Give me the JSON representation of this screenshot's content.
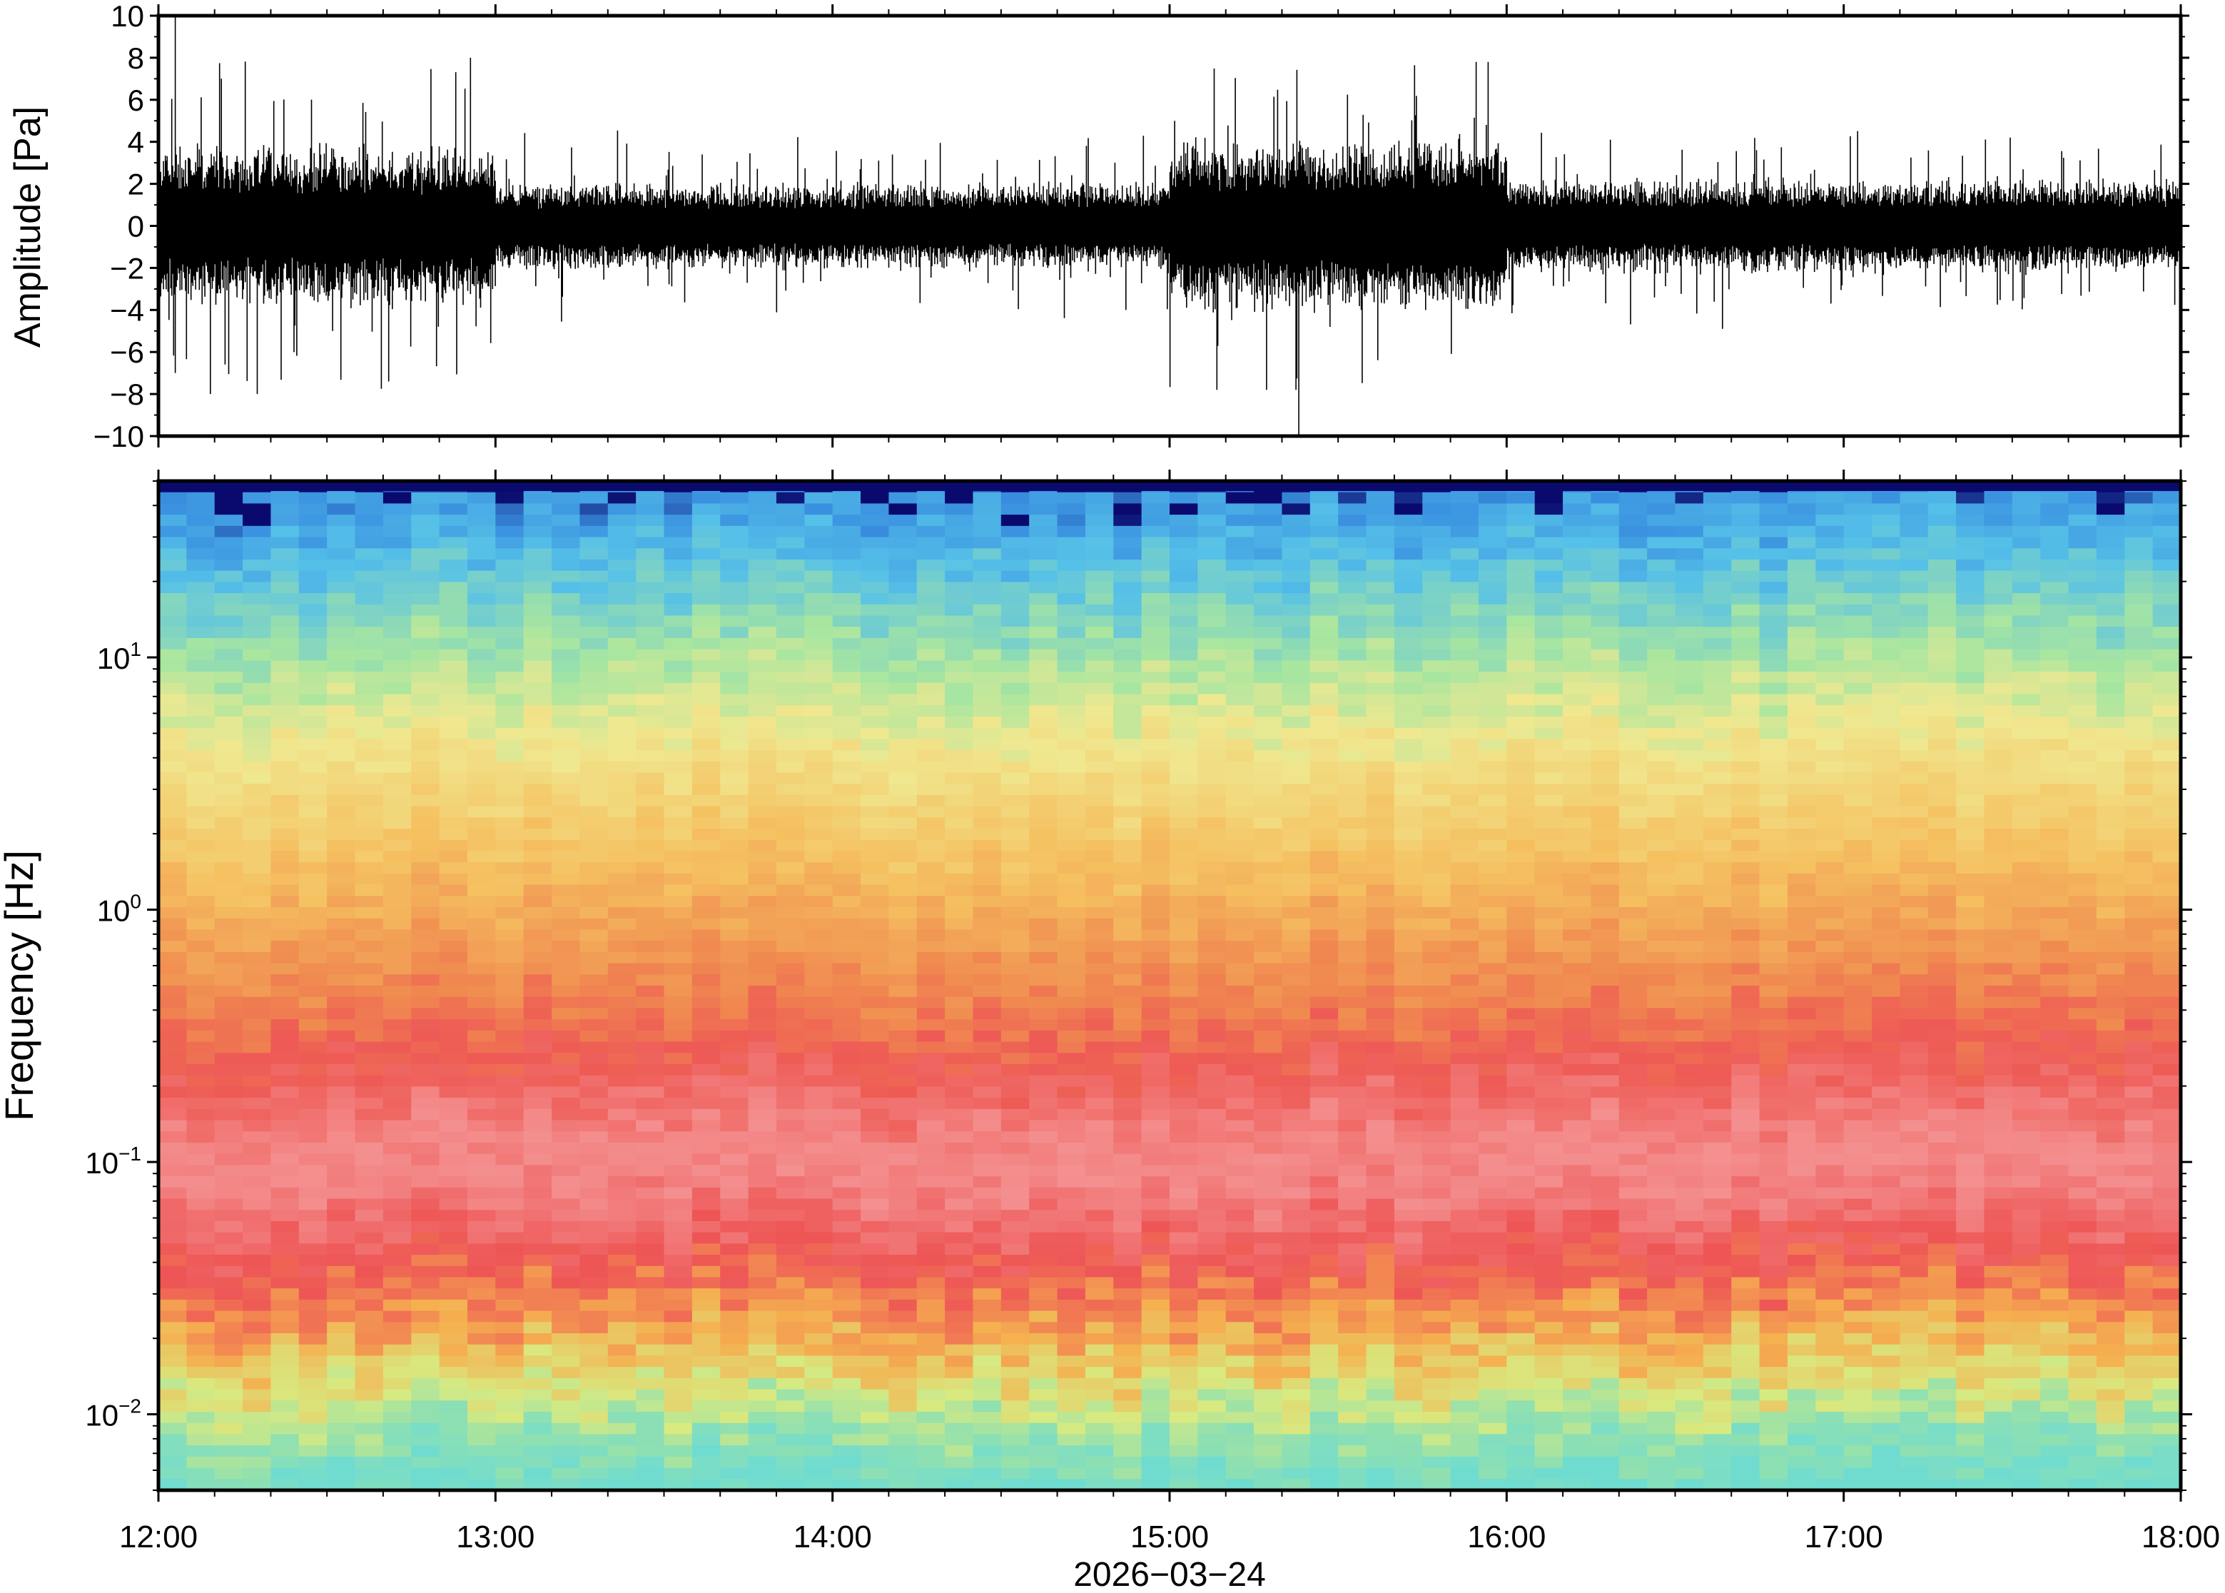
{
  "chart_data": [
    {
      "type": "line",
      "panel": "waveform",
      "ylabel": "Amplitude [Pa]",
      "ylim": [
        -10,
        10
      ],
      "yticks": [
        10,
        8,
        6,
        4,
        2,
        0,
        -2,
        -4,
        -6,
        -8,
        -10
      ],
      "ytick_labels": [
        "10",
        "8",
        "6",
        "4",
        "2",
        "0",
        "−2",
        "−4",
        "−6",
        "−8",
        "−10"
      ],
      "x_range": [
        "12:00",
        "18:00"
      ],
      "envelope_note_free": true,
      "segments": [
        {
          "start": "12:00",
          "end": "13:00",
          "amp": 2.6,
          "peak": 8
        },
        {
          "start": "13:00",
          "end": "15:00",
          "amp": 1.4,
          "peak": 6.2
        },
        {
          "start": "15:00",
          "end": "16:00",
          "amp": 2.8,
          "peak": 7.8
        },
        {
          "start": "16:00",
          "end": "18:00",
          "amp": 1.5,
          "peak": 6.8
        }
      ],
      "spikes": [
        {
          "t": "12:03",
          "min": -7,
          "max": 10
        },
        {
          "t": "15:23",
          "min": -10,
          "max": 3
        }
      ],
      "series": [
        {
          "values_color": "#000000"
        }
      ]
    },
    {
      "type": "heatmap",
      "panel": "spectrogram",
      "ylabel": "Frequency [Hz]",
      "yscale": "log",
      "ylim": [
        0.005,
        50
      ],
      "yticks": [
        {
          "base": "10",
          "exp": "1"
        },
        {
          "base": "10",
          "exp": "0"
        },
        {
          "base": "10",
          "exp": "−1"
        },
        {
          "base": "10",
          "exp": "−2"
        }
      ],
      "ytick_values": [
        10,
        1,
        0.1,
        0.01
      ],
      "x_range": [
        "12:00",
        "18:00"
      ],
      "colormap": "rainbow",
      "frequency_band_colors": [
        {
          "f": 50,
          "color": "#0a0a6e"
        },
        {
          "f": 45,
          "color": "#3a90e0"
        },
        {
          "f": 25,
          "color": "#55c0e8"
        },
        {
          "f": 10,
          "color": "#a8e6a0"
        },
        {
          "f": 5,
          "color": "#f0e890"
        },
        {
          "f": 1.5,
          "color": "#f5c060"
        },
        {
          "f": 0.5,
          "color": "#f08a50"
        },
        {
          "f": 0.25,
          "color": "#ee5a55"
        },
        {
          "f": 0.1,
          "color": "#f49090"
        },
        {
          "f": 0.04,
          "color": "#ee5555"
        },
        {
          "f": 0.02,
          "color": "#f5b050"
        },
        {
          "f": 0.012,
          "color": "#d8ea80"
        },
        {
          "f": 0.008,
          "color": "#90e0b0"
        },
        {
          "f": 0.005,
          "color": "#70dcd0"
        }
      ]
    }
  ],
  "xaxis": {
    "tick_labels": [
      "12:00",
      "13:00",
      "14:00",
      "15:00",
      "16:00",
      "17:00",
      "18:00"
    ],
    "date_label": "2026−03−24"
  }
}
